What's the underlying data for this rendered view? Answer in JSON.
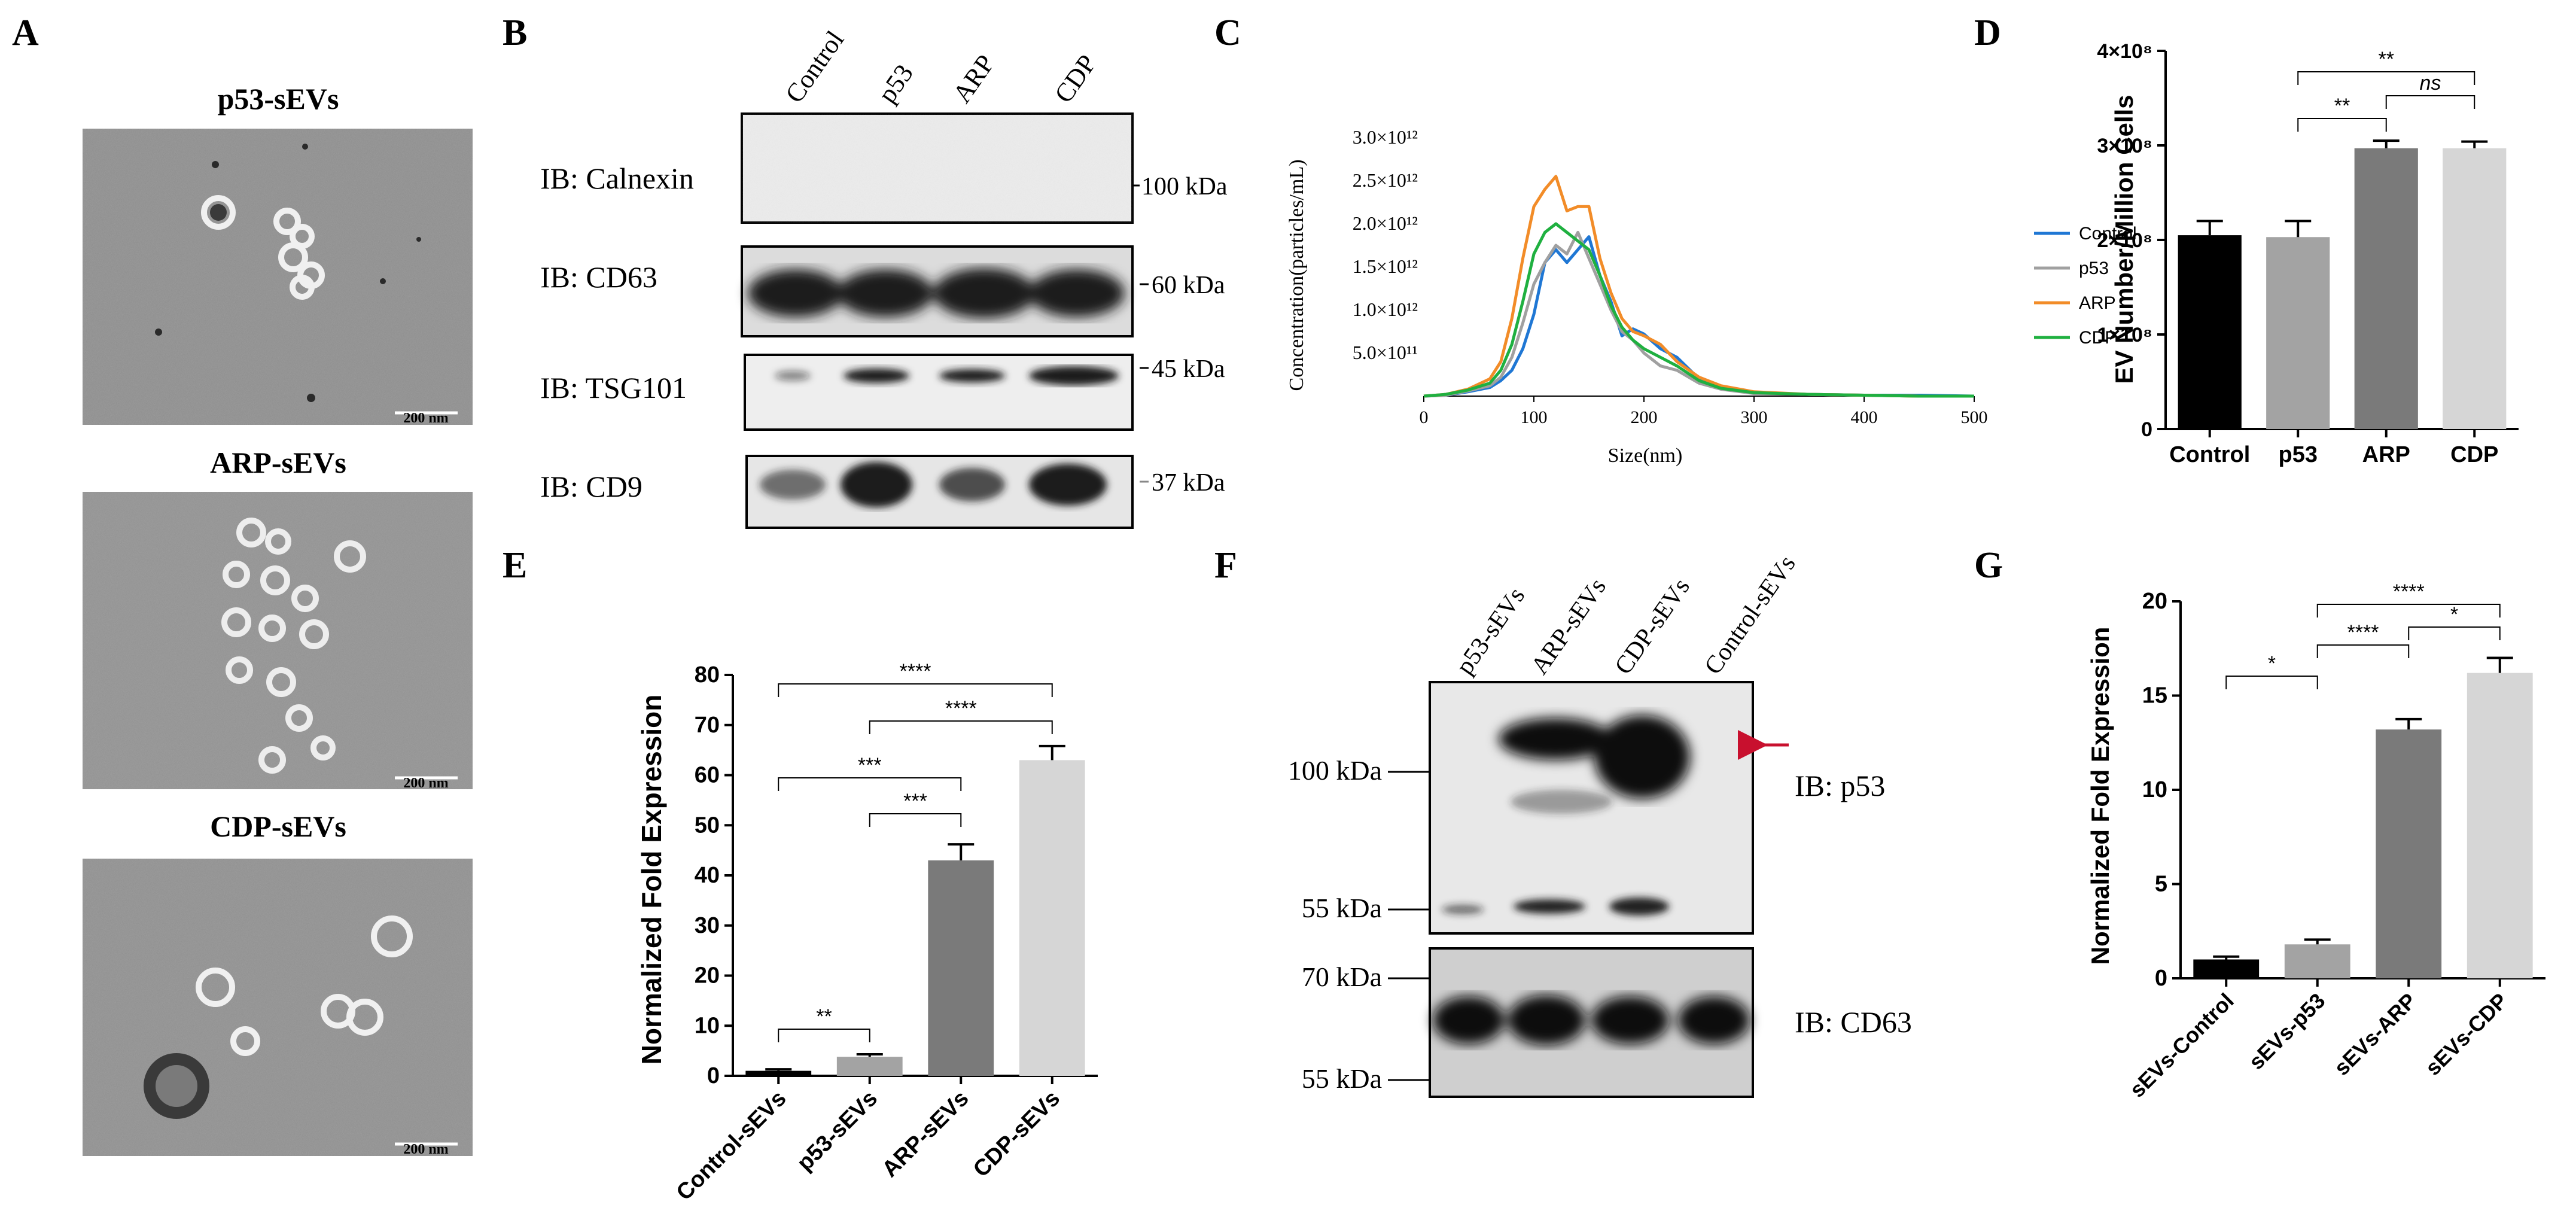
{
  "panel_letters": {
    "A": "A",
    "B": "B",
    "C": "C",
    "D": "D",
    "E": "E",
    "F": "F",
    "G": "G"
  },
  "panel_a": {
    "titles": [
      "p53-sEVs",
      "ARP-sEVs",
      "CDP-sEVs"
    ],
    "scale_bar": "200 nm"
  },
  "panel_b": {
    "lanes": [
      "Control",
      "p53",
      "ARP",
      "CDP"
    ],
    "blots": [
      {
        "ib": "IB: Calnexin",
        "marker": "100 kDa"
      },
      {
        "ib": "IB: CD63",
        "marker": "60 kDa"
      },
      {
        "ib": "IB: TSG101",
        "marker": "45 kDa"
      },
      {
        "ib": "IB: CD9",
        "marker": "37 kDa"
      }
    ]
  },
  "panel_f": {
    "lanes": [
      "p53-sEVs",
      "ARP-sEVs",
      "CDP-sEVs",
      "Control-sEVs"
    ],
    "ib_top": "IB: p53",
    "ib_bottom": "IB: CD63",
    "markers_top": [
      "100 kDa",
      "55 kDa"
    ],
    "markers_bottom": [
      "70 kDa",
      "55 kDa"
    ],
    "arrow_color": "#c8102e"
  },
  "chart_data": [
    {
      "panel": "C",
      "type": "line",
      "xlabel": "Size(nm)",
      "ylabel": "Concentration(particles/mL)",
      "xlim": [
        0,
        500
      ],
      "x_ticks": [
        "0",
        "100",
        "200",
        "300",
        "400",
        "500"
      ],
      "y_ticks": [
        "5.0×10¹¹",
        "1.0×10¹²",
        "1.5×10¹²",
        "2.0×10¹²",
        "2.5×10¹²",
        "3.0×10¹²"
      ],
      "ylim": [
        0,
        3000000000000.0
      ],
      "x": [
        0,
        20,
        40,
        60,
        70,
        80,
        90,
        100,
        110,
        120,
        130,
        140,
        150,
        160,
        170,
        180,
        190,
        200,
        215,
        230,
        250,
        270,
        300,
        350,
        400,
        450,
        500
      ],
      "series": [
        {
          "name": "Control",
          "color": "#1f77d4",
          "values": [
            0,
            10000000000.0,
            50000000000.0,
            100000000000.0,
            180000000000.0,
            300000000000.0,
            550000000000.0,
            950000000000.0,
            1550000000000.0,
            1700000000000.0,
            1550000000000.0,
            1700000000000.0,
            1850000000000.0,
            1400000000000.0,
            1100000000000.0,
            700000000000.0,
            780000000000.0,
            720000000000.0,
            550000000000.0,
            450000000000.0,
            200000000000.0,
            100000000000.0,
            40000000000.0,
            20000000000.0,
            10000000000.0,
            10000000000.0,
            0
          ]
        },
        {
          "name": "p53",
          "color": "#a0a0a0",
          "values": [
            0,
            10000000000.0,
            60000000000.0,
            120000000000.0,
            220000000000.0,
            450000000000.0,
            850000000000.0,
            1300000000000.0,
            1550000000000.0,
            1750000000000.0,
            1650000000000.0,
            1900000000000.0,
            1600000000000.0,
            1300000000000.0,
            1000000000000.0,
            750000000000.0,
            650000000000.0,
            500000000000.0,
            350000000000.0,
            300000000000.0,
            150000000000.0,
            80000000000.0,
            30000000000.0,
            20000000000.0,
            10000000000.0,
            0,
            0
          ]
        },
        {
          "name": "ARP",
          "color": "#f28c28",
          "values": [
            0,
            20000000000.0,
            80000000000.0,
            200000000000.0,
            400000000000.0,
            900000000000.0,
            1600000000000.0,
            2200000000000.0,
            2400000000000.0,
            2550000000000.0,
            2150000000000.0,
            2200000000000.0,
            2200000000000.0,
            1600000000000.0,
            1200000000000.0,
            900000000000.0,
            750000000000.0,
            700000000000.0,
            600000000000.0,
            400000000000.0,
            220000000000.0,
            120000000000.0,
            50000000000.0,
            20000000000.0,
            10000000000.0,
            0,
            0
          ]
        },
        {
          "name": "CDP",
          "color": "#1fb040",
          "values": [
            0,
            20000000000.0,
            70000000000.0,
            150000000000.0,
            300000000000.0,
            600000000000.0,
            1100000000000.0,
            1650000000000.0,
            1900000000000.0,
            2000000000000.0,
            1900000000000.0,
            1800000000000.0,
            1700000000000.0,
            1400000000000.0,
            1050000000000.0,
            800000000000.0,
            650000000000.0,
            550000000000.0,
            450000000000.0,
            350000000000.0,
            180000000000.0,
            90000000000.0,
            40000000000.0,
            20000000000.0,
            10000000000.0,
            0,
            0
          ]
        }
      ],
      "legend": "right"
    },
    {
      "panel": "D",
      "type": "bar",
      "ylabel": "EV Number/Million Cells",
      "categories": [
        "Control",
        "p53",
        "ARP",
        "CDP"
      ],
      "values": [
        205000000.0,
        203000000.0,
        297000000.0,
        297000000.0
      ],
      "errors": [
        15000000.0,
        17000000.0,
        8000000.0,
        7000000.0
      ],
      "colors": [
        "#000000",
        "#a3a3a3",
        "#7a7a7a",
        "#d6d6d6"
      ],
      "ylim": [
        0,
        400000000.0
      ],
      "y_ticks": [
        "0",
        "1×10⁸",
        "2×10⁸",
        "3×10⁸",
        "4×10⁸"
      ],
      "significance": [
        {
          "from": 1,
          "to": 3,
          "label": "**"
        },
        {
          "from": 2,
          "to": 3,
          "label": "ns"
        },
        {
          "from": 1,
          "to": 2,
          "label": "**"
        }
      ]
    },
    {
      "panel": "E",
      "type": "bar",
      "ylabel": "Normalized Fold Expression",
      "categories": [
        "Control-sEVs",
        "p53-sEVs",
        "ARP-sEVs",
        "CDP-sEVs"
      ],
      "values": [
        1.0,
        3.8,
        43.0,
        63.0
      ],
      "errors": [
        0.3,
        0.5,
        3.2,
        2.8
      ],
      "colors": [
        "#000000",
        "#a3a3a3",
        "#7a7a7a",
        "#d6d6d6"
      ],
      "ylim": [
        0,
        80
      ],
      "y_ticks": [
        "0",
        "10",
        "20",
        "30",
        "40",
        "50",
        "60",
        "70",
        "80"
      ],
      "significance": [
        {
          "from": 0,
          "to": 3,
          "label": "****"
        },
        {
          "from": 1,
          "to": 3,
          "label": "****"
        },
        {
          "from": 0,
          "to": 2,
          "label": "***"
        },
        {
          "from": 1,
          "to": 2,
          "label": "***"
        },
        {
          "from": 0,
          "to": 1,
          "label": "**"
        }
      ]
    },
    {
      "panel": "G",
      "type": "bar",
      "ylabel": "Normalized Fold Expression",
      "categories": [
        "sEVs-Control",
        "sEVs-p53",
        "sEVs-ARP",
        "sEVs-CDP"
      ],
      "values": [
        1.0,
        1.8,
        13.2,
        16.2
      ],
      "errors": [
        0.15,
        0.25,
        0.55,
        0.8
      ],
      "colors": [
        "#000000",
        "#a3a3a3",
        "#7a7a7a",
        "#d6d6d6"
      ],
      "ylim": [
        0,
        20
      ],
      "y_ticks": [
        "0",
        "5",
        "10",
        "15",
        "20"
      ],
      "significance": [
        {
          "from": 1,
          "to": 3,
          "label": "****"
        },
        {
          "from": 1,
          "to": 2,
          "label": "****"
        },
        {
          "from": 2,
          "to": 3,
          "label": "*"
        },
        {
          "from": 0,
          "to": 1,
          "label": "*"
        }
      ]
    }
  ]
}
